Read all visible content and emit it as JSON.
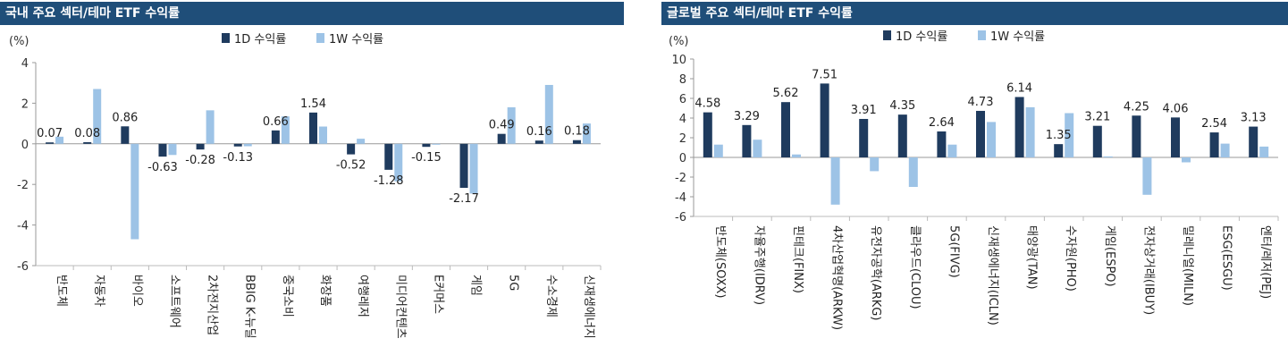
{
  "panels": [
    {
      "title": "국내 주요 섹터/테마 ETF 수익률",
      "chart_data": {
        "type": "bar",
        "unit": "(%)",
        "categories": [
          "반도체",
          "자동차",
          "바이오",
          "소프트웨어",
          "2차전지산업",
          "BBIG K-뉴딜",
          "중국소비",
          "화장품",
          "여행레저",
          "미디어컨텐츠",
          "E커머스",
          "게임",
          "5G",
          "수소경제",
          "신재생에너지"
        ],
        "series": [
          {
            "name": "1D 수익률",
            "values": [
              0.07,
              0.08,
              0.86,
              -0.63,
              -0.28,
              -0.13,
              0.66,
              1.54,
              -0.52,
              -1.28,
              -0.15,
              -2.17,
              0.49,
              0.16,
              0.18
            ]
          },
          {
            "name": "1W 수익률",
            "values": [
              0.35,
              2.7,
              -4.7,
              -0.55,
              1.65,
              -0.12,
              1.35,
              0.85,
              0.25,
              -1.85,
              0.0,
              -2.45,
              1.8,
              2.9,
              1.0
            ]
          }
        ],
        "labels": [
          "0.07",
          "0.08",
          "0.86",
          "-0.63",
          "-0.28",
          "-0.13",
          "0.66",
          "1.54",
          "-0.52",
          "-1.28",
          "-0.15",
          "-2.17",
          "0.49",
          "0.16",
          "0.18"
        ],
        "ylim": [
          -6,
          4
        ],
        "yticks": [
          "4",
          "2",
          "0",
          "-2",
          "-4",
          "-6"
        ],
        "colors": {
          "d1": "#1f3b5e",
          "w1": "#9dc3e6"
        },
        "legend_position": "top-center"
      }
    },
    {
      "title": "글로벌 주요 섹터/테마 ETF 수익률",
      "chart_data": {
        "type": "bar",
        "unit": "(%)",
        "categories": [
          "반도체(SOXX)",
          "자율주행(IDRV)",
          "핀테크(FINX)",
          "4차산업혁명(ARKW)",
          "유전자공학(ARKG)",
          "클라우드(CLOU)",
          "5G(FIVG)",
          "신재생에너지(ICLN)",
          "태양광(TAN)",
          "수자원(PHO)",
          "게임(ESPO)",
          "전자상거래(IBUY)",
          "밀레니얼(MILN)",
          "ESG(ESGU)",
          "엔터/레저(PEJ)"
        ],
        "series": [
          {
            "name": "1D 수익률",
            "values": [
              4.58,
              3.29,
              5.62,
              7.51,
              3.91,
              4.35,
              2.64,
              4.73,
              6.14,
              1.35,
              3.21,
              4.25,
              4.06,
              2.54,
              3.13
            ]
          },
          {
            "name": "1W 수익률",
            "values": [
              1.3,
              1.8,
              0.3,
              -4.8,
              -1.4,
              -3.0,
              1.3,
              3.6,
              5.1,
              4.5,
              0.1,
              -3.8,
              -0.5,
              1.4,
              1.1
            ]
          }
        ],
        "labels": [
          "4.58",
          "3.29",
          "5.62",
          "7.51",
          "3.91",
          "4.35",
          "2.64",
          "4.73",
          "6.14",
          "1.35",
          "3.21",
          "4.25",
          "4.06",
          "2.54",
          "3.13"
        ],
        "ylim": [
          -6,
          10
        ],
        "yticks": [
          "10",
          "8",
          "6",
          "4",
          "2",
          "0",
          "-2",
          "-4",
          "-6"
        ],
        "colors": {
          "d1": "#1f3b5e",
          "w1": "#9dc3e6"
        },
        "legend_position": "top-center"
      }
    }
  ]
}
